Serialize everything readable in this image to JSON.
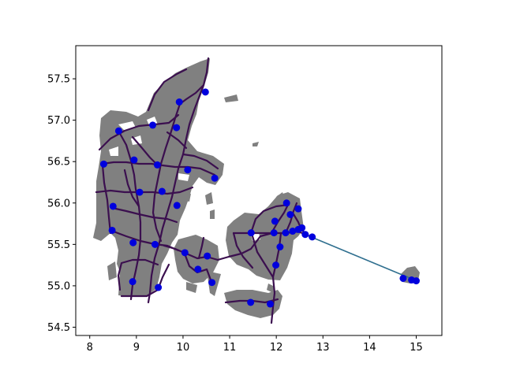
{
  "chart_data": {
    "type": "scatter",
    "title": "",
    "xlabel": "",
    "ylabel": "",
    "xlim": [
      7.7,
      15.55
    ],
    "ylim": [
      54.4,
      57.9
    ],
    "x_ticks": [
      "8",
      "9",
      "10",
      "11",
      "12",
      "13",
      "14",
      "15"
    ],
    "y_ticks": [
      "54.5",
      "55.0",
      "55.5",
      "56.0",
      "56.5",
      "57.0",
      "57.5"
    ],
    "grid": false,
    "colors": {
      "land": "#808080",
      "roads": "#3b0f4f",
      "ferry_line": "#2f6f8f",
      "cities": "#0000dd"
    },
    "series": [
      {
        "points": [
          {
            "x": 10.48,
            "y": 57.34
          },
          {
            "x": 9.92,
            "y": 57.22
          },
          {
            "x": 8.62,
            "y": 56.87
          },
          {
            "x": 9.35,
            "y": 56.94
          },
          {
            "x": 9.86,
            "y": 56.91
          },
          {
            "x": 8.3,
            "y": 56.47
          },
          {
            "x": 8.95,
            "y": 56.52
          },
          {
            "x": 9.45,
            "y": 56.46
          },
          {
            "x": 10.1,
            "y": 56.4
          },
          {
            "x": 10.68,
            "y": 56.3
          },
          {
            "x": 9.07,
            "y": 56.13
          },
          {
            "x": 9.55,
            "y": 56.14
          },
          {
            "x": 8.5,
            "y": 55.96
          },
          {
            "x": 9.87,
            "y": 55.97
          },
          {
            "x": 8.48,
            "y": 55.67
          },
          {
            "x": 8.93,
            "y": 55.52
          },
          {
            "x": 9.4,
            "y": 55.5
          },
          {
            "x": 10.04,
            "y": 55.4
          },
          {
            "x": 10.52,
            "y": 55.36
          },
          {
            "x": 10.32,
            "y": 55.2
          },
          {
            "x": 10.62,
            "y": 55.04
          },
          {
            "x": 8.92,
            "y": 55.05
          },
          {
            "x": 9.47,
            "y": 54.98
          },
          {
            "x": 11.46,
            "y": 55.64
          },
          {
            "x": 11.95,
            "y": 55.64
          },
          {
            "x": 12.08,
            "y": 55.47
          },
          {
            "x": 11.97,
            "y": 55.78
          },
          {
            "x": 12.22,
            "y": 56.0
          },
          {
            "x": 12.3,
            "y": 55.86
          },
          {
            "x": 12.47,
            "y": 55.93
          },
          {
            "x": 12.2,
            "y": 55.64
          },
          {
            "x": 12.35,
            "y": 55.66
          },
          {
            "x": 12.47,
            "y": 55.68
          },
          {
            "x": 12.55,
            "y": 55.7
          },
          {
            "x": 12.62,
            "y": 55.62
          },
          {
            "x": 12.77,
            "y": 55.59
          },
          {
            "x": 11.99,
            "y": 55.25
          },
          {
            "x": 11.45,
            "y": 54.8
          },
          {
            "x": 11.87,
            "y": 54.78
          },
          {
            "x": 14.72,
            "y": 55.09
          },
          {
            "x": 14.9,
            "y": 55.07
          },
          {
            "x": 15.0,
            "y": 55.06
          }
        ]
      }
    ],
    "ferry": [
      {
        "x": 12.62,
        "y": 55.62
      },
      {
        "x": 15.05,
        "y": 55.05
      }
    ]
  }
}
